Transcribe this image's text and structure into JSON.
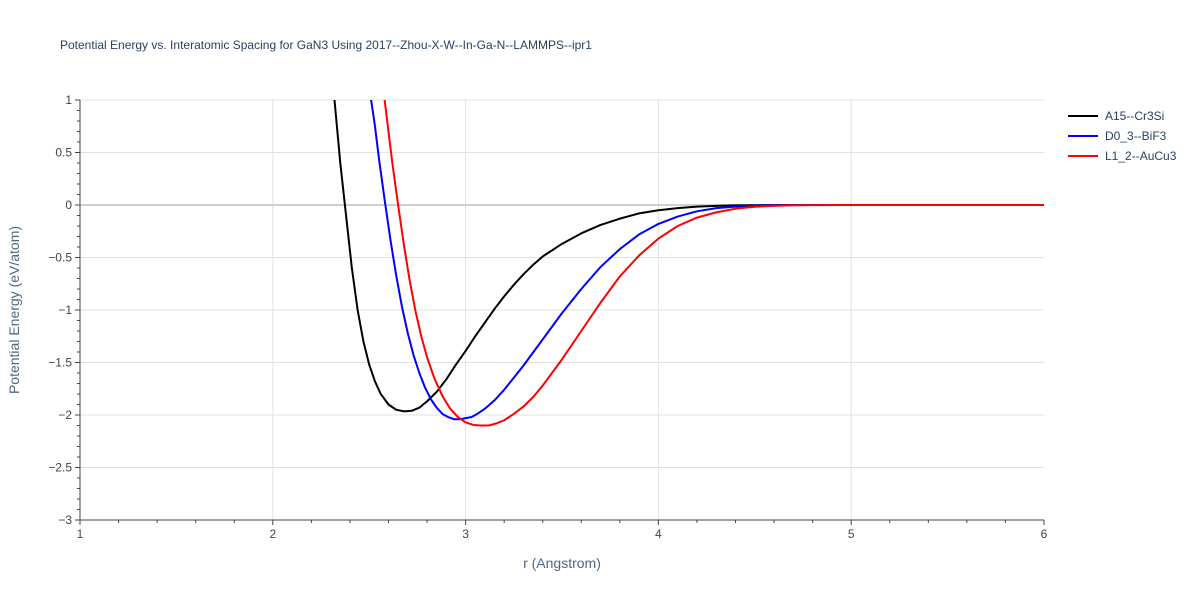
{
  "chart_data": {
    "type": "line",
    "title": "Potential Energy vs. Interatomic Spacing for GaN3 Using 2017--Zhou-X-W--In-Ga-N--LAMMPS--ipr1",
    "xlabel": "r (Angstrom)",
    "ylabel": "Potential Energy (eV/atom)",
    "xlim": [
      1,
      6
    ],
    "ylim": [
      -3,
      1
    ],
    "xticks": [
      1,
      2,
      3,
      4,
      5,
      6
    ],
    "xtick_labels": [
      "1",
      "2",
      "3",
      "4",
      "5",
      "6"
    ],
    "yticks": [
      1,
      0.5,
      0,
      -0.5,
      -1,
      -1.5,
      -2,
      -2.5,
      -3
    ],
    "ytick_labels": [
      "1",
      "0.5",
      "0",
      "−0.5",
      "−1",
      "−1.5",
      "−2",
      "−2.5",
      "−3"
    ],
    "grid": true,
    "legend_position": "top-right",
    "series": [
      {
        "name": "A15--Cr3Si",
        "color": "#000000",
        "x": [
          2.32,
          2.35,
          2.38,
          2.41,
          2.44,
          2.47,
          2.5,
          2.53,
          2.56,
          2.6,
          2.64,
          2.68,
          2.72,
          2.76,
          2.8,
          2.85,
          2.9,
          2.95,
          3.0,
          3.05,
          3.1,
          3.15,
          3.2,
          3.25,
          3.3,
          3.35,
          3.4,
          3.5,
          3.6,
          3.7,
          3.8,
          3.9,
          4.0,
          4.1,
          4.2,
          4.3,
          4.4,
          4.5,
          4.6,
          4.7,
          4.8,
          5.0,
          5.5,
          6.0
        ],
        "y": [
          1.0,
          0.4,
          -0.1,
          -0.6,
          -1.0,
          -1.3,
          -1.52,
          -1.68,
          -1.8,
          -1.9,
          -1.95,
          -1.965,
          -1.96,
          -1.93,
          -1.87,
          -1.78,
          -1.66,
          -1.52,
          -1.39,
          -1.25,
          -1.12,
          -0.99,
          -0.87,
          -0.76,
          -0.66,
          -0.57,
          -0.49,
          -0.37,
          -0.27,
          -0.19,
          -0.13,
          -0.08,
          -0.05,
          -0.03,
          -0.015,
          -0.008,
          -0.004,
          -0.002,
          -0.001,
          0,
          0,
          0,
          0,
          0
        ]
      },
      {
        "name": "D0_3--BiF3",
        "color": "#0000ff",
        "x": [
          2.51,
          2.53,
          2.55,
          2.58,
          2.61,
          2.64,
          2.67,
          2.7,
          2.73,
          2.76,
          2.79,
          2.82,
          2.85,
          2.88,
          2.91,
          2.94,
          2.97,
          3.0,
          3.03,
          3.06,
          3.1,
          3.15,
          3.2,
          3.3,
          3.4,
          3.5,
          3.6,
          3.7,
          3.8,
          3.9,
          4.0,
          4.1,
          4.2,
          4.3,
          4.4,
          4.5,
          4.6,
          4.7,
          4.8,
          5.0,
          5.5,
          6.0
        ],
        "y": [
          1.0,
          0.75,
          0.45,
          0.05,
          -0.33,
          -0.67,
          -0.97,
          -1.22,
          -1.43,
          -1.6,
          -1.74,
          -1.85,
          -1.93,
          -1.99,
          -2.02,
          -2.04,
          -2.04,
          -2.03,
          -2.02,
          -1.99,
          -1.94,
          -1.86,
          -1.76,
          -1.53,
          -1.28,
          -1.03,
          -0.8,
          -0.59,
          -0.42,
          -0.28,
          -0.18,
          -0.11,
          -0.06,
          -0.03,
          -0.015,
          -0.007,
          -0.003,
          -0.001,
          0,
          0,
          0,
          0
        ]
      },
      {
        "name": "L1_2--AuCu3",
        "color": "#ff0000",
        "x": [
          2.58,
          2.6,
          2.62,
          2.65,
          2.68,
          2.71,
          2.74,
          2.77,
          2.8,
          2.84,
          2.88,
          2.92,
          2.96,
          3.0,
          3.04,
          3.08,
          3.12,
          3.16,
          3.2,
          3.25,
          3.3,
          3.35,
          3.4,
          3.5,
          3.6,
          3.7,
          3.8,
          3.9,
          4.0,
          4.1,
          4.2,
          4.3,
          4.4,
          4.5,
          4.6,
          4.7,
          4.8,
          5.0,
          5.5,
          6.0
        ],
        "y": [
          1.0,
          0.7,
          0.4,
          0.0,
          -0.38,
          -0.72,
          -1.01,
          -1.25,
          -1.45,
          -1.66,
          -1.82,
          -1.94,
          -2.02,
          -2.07,
          -2.095,
          -2.1,
          -2.1,
          -2.08,
          -2.05,
          -1.99,
          -1.92,
          -1.83,
          -1.72,
          -1.47,
          -1.2,
          -0.93,
          -0.68,
          -0.48,
          -0.32,
          -0.2,
          -0.12,
          -0.07,
          -0.035,
          -0.017,
          -0.008,
          -0.003,
          -0.001,
          0,
          0,
          0
        ]
      }
    ]
  }
}
